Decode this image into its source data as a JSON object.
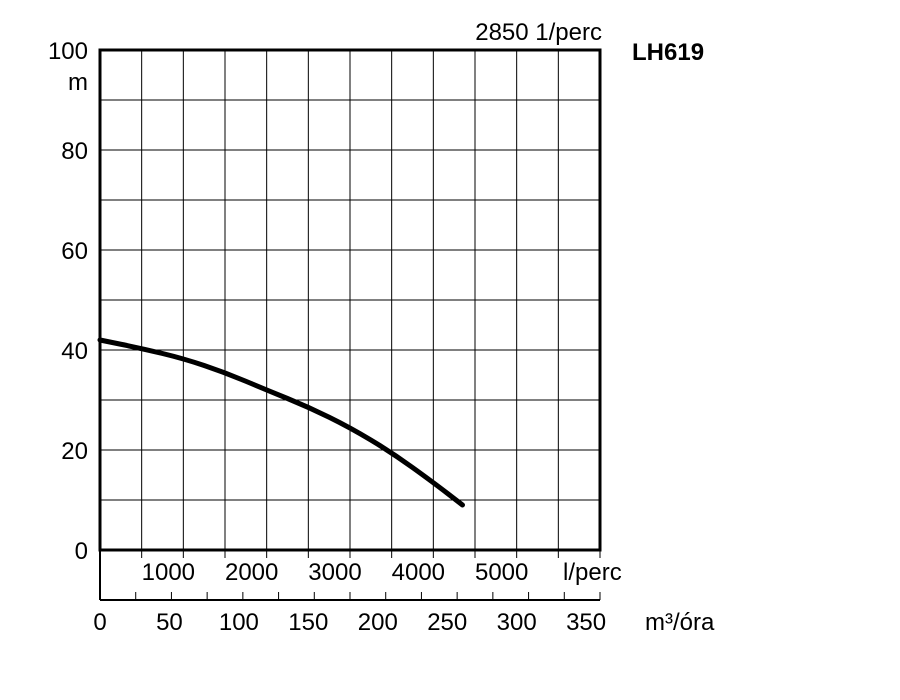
{
  "chart_data": {
    "type": "line",
    "title": "LH619",
    "speed_label": "2850 1/perc",
    "ylabel": "m",
    "ylim": [
      0,
      100
    ],
    "y_ticks": [
      "0",
      "20",
      "40",
      "60",
      "80",
      "100"
    ],
    "y_tick_values": [
      0,
      20,
      40,
      60,
      80,
      100
    ],
    "xlim": [
      0,
      6000
    ],
    "x_ticks_lpm": [
      "1000",
      "2000",
      "3000",
      "4000",
      "5000"
    ],
    "x_tick_values_lpm": [
      1000,
      2000,
      3000,
      4000,
      5000
    ],
    "x_unit_lpm": "l/perc",
    "x_ticks_m3h": [
      "0",
      "50",
      "100",
      "150",
      "200",
      "250",
      "300",
      "350"
    ],
    "x_tick_values_m3h": [
      0,
      50,
      100,
      150,
      200,
      250,
      300,
      350
    ],
    "x_unit_m3h": "m³/óra",
    "grid": true,
    "series": [
      {
        "x": [
          0,
          500,
          1000,
          1500,
          2000,
          2500,
          3000,
          3500,
          4000,
          4350
        ],
        "y": [
          42,
          40.3,
          38.3,
          35.5,
          32,
          28.6,
          24.5,
          19.5,
          13.5,
          9
        ]
      }
    ],
    "colors": {
      "grid": "#000000",
      "line": "#000000"
    }
  }
}
